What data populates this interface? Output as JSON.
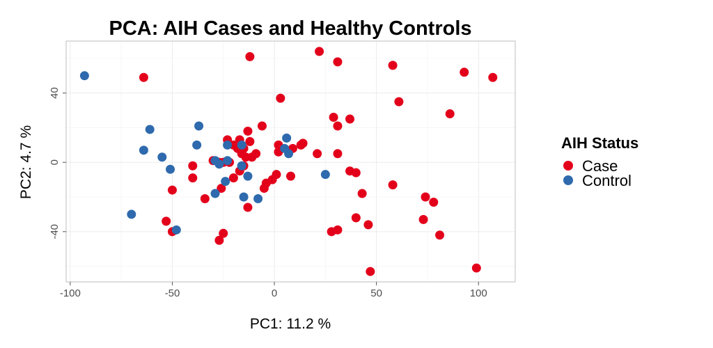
{
  "chart_data": {
    "type": "scatter",
    "title": "PCA: AIH Cases and Healthy Controls",
    "xlabel": "PC1: 11.2 %",
    "ylabel": "PC2: 4.7 %",
    "xlim": [
      -102,
      118
    ],
    "ylim": [
      -69,
      70
    ],
    "xticks": [
      -100,
      -50,
      0,
      50,
      100
    ],
    "yticks": [
      -40,
      0,
      40
    ],
    "grid": true,
    "legend": {
      "title": "AIH Status",
      "position": "right",
      "entries": [
        {
          "label": "Case",
          "color": "#e3001b"
        },
        {
          "label": "Control",
          "color": "#2e6aad"
        }
      ]
    },
    "series": [
      {
        "name": "Case",
        "color": "#e3001b",
        "points": [
          [
            -64,
            49
          ],
          [
            -12,
            61
          ],
          [
            22,
            64
          ],
          [
            31,
            58
          ],
          [
            58,
            56
          ],
          [
            93,
            52
          ],
          [
            107,
            49
          ],
          [
            3,
            37
          ],
          [
            61,
            35
          ],
          [
            86,
            28
          ],
          [
            -6,
            21
          ],
          [
            29,
            26
          ],
          [
            31,
            21
          ],
          [
            37,
            25
          ],
          [
            -23,
            13
          ],
          [
            -17,
            13
          ],
          [
            -13,
            18
          ],
          [
            -15,
            8
          ],
          [
            -12,
            12
          ],
          [
            -9,
            5
          ],
          [
            -11,
            3
          ],
          [
            -14,
            3
          ],
          [
            -16,
            5
          ],
          [
            -18,
            8
          ],
          [
            -20,
            10
          ],
          [
            -22,
            0
          ],
          [
            -25,
            0
          ],
          [
            -30,
            1
          ],
          [
            -40,
            -2
          ],
          [
            -40,
            -9
          ],
          [
            -27,
            0
          ],
          [
            -15,
            -2
          ],
          [
            -17,
            -5
          ],
          [
            -20,
            -9
          ],
          [
            -26,
            -15
          ],
          [
            -5,
            -15
          ],
          [
            -4,
            -12
          ],
          [
            -1,
            -10
          ],
          [
            1,
            -7
          ],
          [
            2,
            6
          ],
          [
            2,
            10
          ],
          [
            9,
            8
          ],
          [
            13,
            10
          ],
          [
            14,
            11
          ],
          [
            21,
            5
          ],
          [
            31,
            5
          ],
          [
            37,
            -5
          ],
          [
            40,
            -6
          ],
          [
            8,
            -8
          ],
          [
            43,
            -18
          ],
          [
            58,
            -13
          ],
          [
            74,
            -20
          ],
          [
            78,
            -23
          ],
          [
            73,
            -33
          ],
          [
            81,
            -42
          ],
          [
            40,
            -32
          ],
          [
            46,
            -36
          ],
          [
            31,
            -39
          ],
          [
            28,
            -40
          ],
          [
            47,
            -63
          ],
          [
            99,
            -61
          ],
          [
            -34,
            -21
          ],
          [
            -50,
            -16
          ],
          [
            -53,
            -34
          ],
          [
            -50,
            -40
          ],
          [
            -25,
            -41
          ],
          [
            -27,
            -45
          ],
          [
            -13,
            -26
          ]
        ]
      },
      {
        "name": "Control",
        "color": "#2e6aad",
        "points": [
          [
            -93,
            50
          ],
          [
            -61,
            19
          ],
          [
            -37,
            21
          ],
          [
            -38,
            10
          ],
          [
            -64,
            7
          ],
          [
            -55,
            3
          ],
          [
            -51,
            -4
          ],
          [
            -23,
            10
          ],
          [
            -29,
            1
          ],
          [
            -27,
            -1
          ],
          [
            -23,
            1
          ],
          [
            -16,
            -2
          ],
          [
            -13,
            -8
          ],
          [
            -24,
            -11
          ],
          [
            -29,
            -18
          ],
          [
            -15,
            -20
          ],
          [
            -8,
            -21
          ],
          [
            6,
            14
          ],
          [
            5,
            8
          ],
          [
            7,
            5
          ],
          [
            25,
            -7
          ],
          [
            -70,
            -30
          ],
          [
            -48,
            -39
          ],
          [
            -16,
            10
          ]
        ]
      }
    ]
  }
}
